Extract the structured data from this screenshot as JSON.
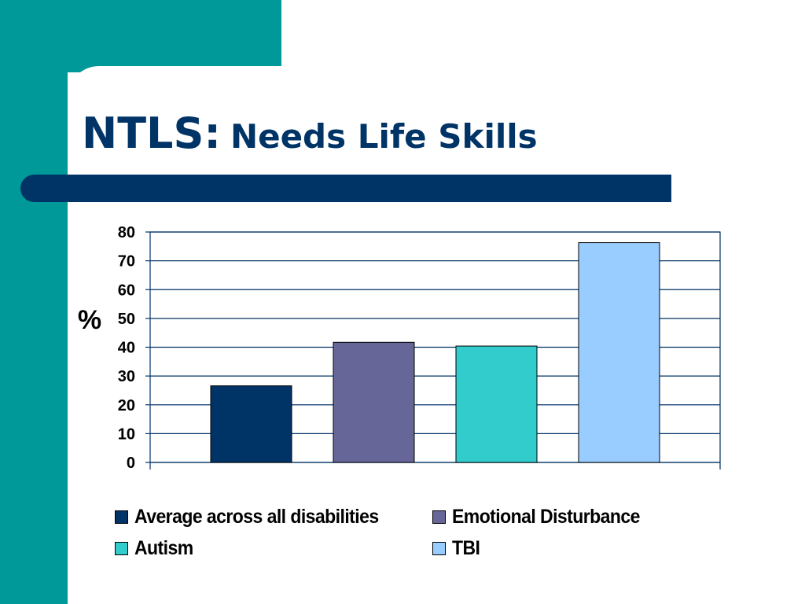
{
  "slide": {
    "title_main": "NTLS:",
    "title_sub": "Needs Life Skills"
  },
  "colors": {
    "teal": "#009999",
    "navy": "#003366"
  },
  "chart_data": {
    "type": "bar",
    "title": "",
    "xlabel": "",
    "ylabel": "%",
    "ylim": [
      0,
      80
    ],
    "yticks": [
      0,
      10,
      20,
      30,
      40,
      50,
      60,
      70,
      80
    ],
    "grid": true,
    "legend_position": "bottom",
    "series": [
      {
        "name": "Average across all disabilities",
        "value": 26.6,
        "color": "#003366"
      },
      {
        "name": "Emotional Disturbance",
        "value": 41.7,
        "color": "#666699"
      },
      {
        "name": "Autism",
        "value": 40.4,
        "color": "#33CCCC"
      },
      {
        "name": "TBI",
        "value": 76.3,
        "color": "#99CCFF"
      }
    ]
  }
}
